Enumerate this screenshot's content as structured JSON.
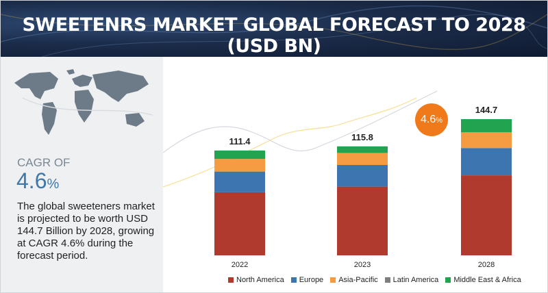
{
  "header": {
    "title": "SWEETENRS MARKET GLOBAL FORECAST TO 2028 (USD BN)"
  },
  "summary": {
    "cagr_label": "CAGR OF",
    "cagr_number": "4.6",
    "cagr_percent": "%",
    "description": "The global sweeteners market is projected to be worth USD 144.7 Billion by 2028, growing at CAGR 4.6% during the forecast period."
  },
  "growth_badge": {
    "number": "4.6",
    "percent": "%"
  },
  "chart_data": {
    "type": "bar",
    "stacked": true,
    "categories": [
      "2022",
      "2023",
      "2028"
    ],
    "totals_labels": [
      "111.4",
      "115.8",
      "144.7"
    ],
    "totals": [
      111.4,
      115.8,
      144.7
    ],
    "series": [
      {
        "name": "North America",
        "color": "#b03a2e",
        "values": [
          67.0,
          73.0,
          85.0
        ]
      },
      {
        "name": "Europe",
        "color": "#3d75b0",
        "values": [
          22.0,
          23.0,
          29.0
        ]
      },
      {
        "name": "Asia-Pacific",
        "color": "#f59b42",
        "values": [
          13.4,
          12.8,
          16.7
        ]
      },
      {
        "name": "Latin America",
        "color": "#7f7f7f",
        "values": [
          0,
          0,
          0
        ]
      },
      {
        "name": "Middle East & Africa",
        "color": "#21a34f",
        "values": [
          9.0,
          7.0,
          14.0
        ]
      }
    ],
    "grid": false,
    "legend_position": "bottom"
  }
}
